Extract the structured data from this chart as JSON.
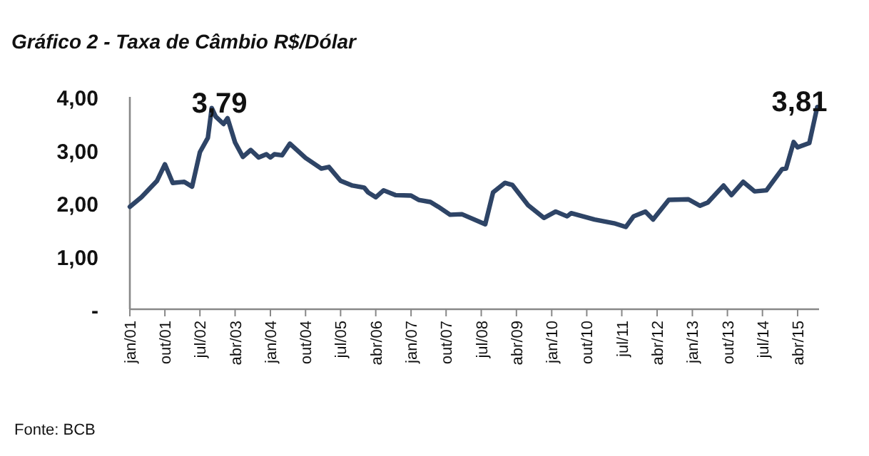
{
  "chart_data": {
    "type": "line",
    "title": "Gráfico 2 - Taxa de Câmbio R$/Dólar",
    "x": [
      "2001-01",
      "2001-04",
      "2001-08",
      "2001-10",
      "2001-12",
      "2002-03",
      "2002-05",
      "2002-07",
      "2002-09",
      "2002-10",
      "2002-11",
      "2003-01",
      "2003-02",
      "2003-04",
      "2003-06",
      "2003-08",
      "2003-10",
      "2003-12",
      "2004-01",
      "2004-02",
      "2004-04",
      "2004-06",
      "2004-10",
      "2005-02",
      "2005-04",
      "2005-07",
      "2005-10",
      "2006-01",
      "2006-02",
      "2006-04",
      "2006-06",
      "2006-09",
      "2007-01",
      "2007-03",
      "2007-06",
      "2007-08",
      "2007-11",
      "2008-02",
      "2008-08",
      "2008-10",
      "2009-01",
      "2009-03",
      "2009-07",
      "2009-11",
      "2010-02",
      "2010-05",
      "2010-06",
      "2010-12",
      "2011-05",
      "2011-08",
      "2011-10",
      "2012-01",
      "2012-03",
      "2012-07",
      "2012-12",
      "2013-03",
      "2013-05",
      "2013-09",
      "2013-11",
      "2014-02",
      "2014-05",
      "2014-08",
      "2014-12",
      "2015-01",
      "2015-03",
      "2015-04",
      "2015-07",
      "2015-09"
    ],
    "series": [
      {
        "color": "#2e4466",
        "values": [
          1.93,
          2.11,
          2.42,
          2.73,
          2.38,
          2.4,
          2.31,
          2.96,
          3.23,
          3.79,
          3.63,
          3.49,
          3.6,
          3.14,
          2.87,
          3.0,
          2.86,
          2.92,
          2.86,
          2.92,
          2.9,
          3.12,
          2.85,
          2.65,
          2.68,
          2.42,
          2.33,
          2.29,
          2.2,
          2.11,
          2.24,
          2.15,
          2.14,
          2.06,
          2.02,
          1.93,
          1.78,
          1.79,
          1.6,
          2.2,
          2.38,
          2.34,
          1.96,
          1.72,
          1.84,
          1.75,
          1.81,
          1.69,
          1.62,
          1.55,
          1.75,
          1.84,
          1.69,
          2.06,
          2.07,
          1.95,
          2.01,
          2.33,
          2.15,
          2.4,
          2.22,
          2.24,
          2.64,
          2.65,
          3.15,
          3.05,
          3.13,
          3.81
        ]
      }
    ],
    "xlim": [
      "2001-01",
      "2015-09-15"
    ],
    "xticks": [
      {
        "value": "2001-01",
        "label": "jan/01"
      },
      {
        "value": "2001-10",
        "label": "out/01"
      },
      {
        "value": "2002-07",
        "label": "jul/02"
      },
      {
        "value": "2003-04",
        "label": "abr/03"
      },
      {
        "value": "2004-01",
        "label": "jan/04"
      },
      {
        "value": "2004-10",
        "label": "out/04"
      },
      {
        "value": "2005-07",
        "label": "jul/05"
      },
      {
        "value": "2006-04",
        "label": "abr/06"
      },
      {
        "value": "2007-01",
        "label": "jan/07"
      },
      {
        "value": "2007-10",
        "label": "out/07"
      },
      {
        "value": "2008-07",
        "label": "jul/08"
      },
      {
        "value": "2009-04",
        "label": "abr/09"
      },
      {
        "value": "2010-01",
        "label": "jan/10"
      },
      {
        "value": "2010-10",
        "label": "out/10"
      },
      {
        "value": "2011-07",
        "label": "jul/11"
      },
      {
        "value": "2012-04",
        "label": "abr/12"
      },
      {
        "value": "2013-01",
        "label": "jan/13"
      },
      {
        "value": "2013-10",
        "label": "out/13"
      },
      {
        "value": "2014-07",
        "label": "jul/14"
      },
      {
        "value": "2015-04",
        "label": "abr/15"
      }
    ],
    "ylim": [
      0,
      4
    ],
    "yticks": [
      {
        "value": 0,
        "label": "-"
      },
      {
        "value": 1,
        "label": "1,00"
      },
      {
        "value": 2,
        "label": "2,00"
      },
      {
        "value": 3,
        "label": "3,00"
      },
      {
        "value": 4,
        "label": "4,00"
      }
    ],
    "grid": false,
    "marker": "none",
    "line_style": "solid",
    "annotations": [
      {
        "text": "3,79",
        "x": "2002-10",
        "y": 3.79
      },
      {
        "text": "3,81",
        "x": "2015-09",
        "y": 3.81
      },
      "Fonte: BCB"
    ]
  }
}
